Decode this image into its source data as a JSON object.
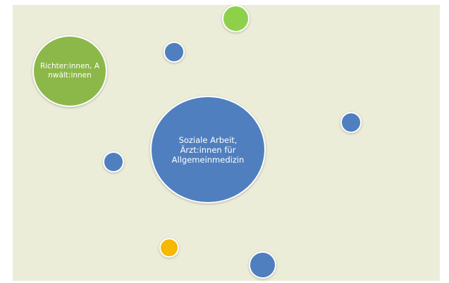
{
  "diagram": {
    "nodes": [
      {
        "id": "center",
        "label": "Soziale Arbeit, Ärzt:innen für Allgemeinmedizin",
        "color": "#4f7fbf"
      },
      {
        "id": "lawyers",
        "label": "Richter:innen, Anwält:innen",
        "color": "#8cb84a"
      },
      {
        "id": "top",
        "label": "",
        "color": "#8fd04b"
      },
      {
        "id": "upper-left",
        "label": "",
        "color": "#4f7fbf"
      },
      {
        "id": "right",
        "label": "",
        "color": "#4f7fbf"
      },
      {
        "id": "left",
        "label": "",
        "color": "#4f7fbf"
      },
      {
        "id": "bottom-yellow",
        "label": "",
        "color": "#f6b800"
      },
      {
        "id": "bottom",
        "label": "",
        "color": "#4f7fbf"
      }
    ]
  }
}
